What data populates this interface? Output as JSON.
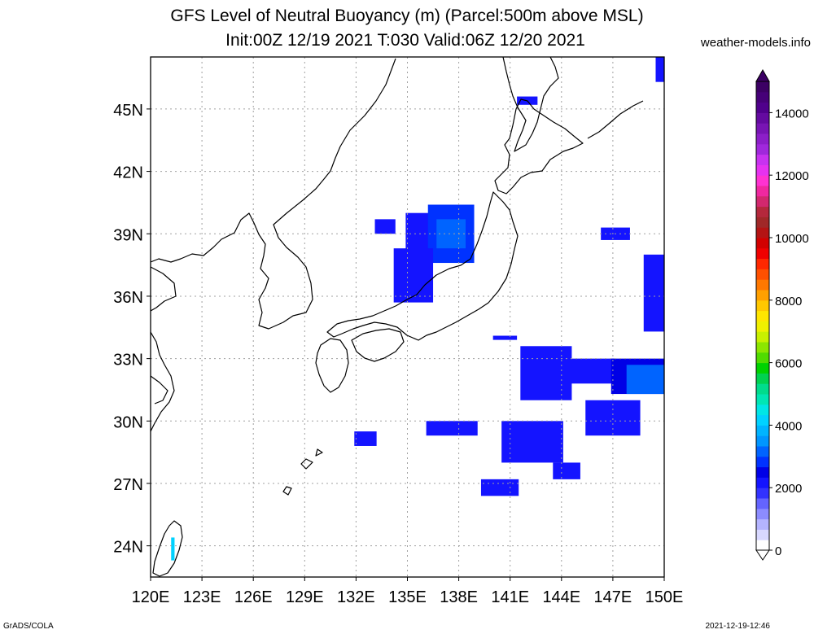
{
  "title": {
    "line1": "GFS Level of Neutral Buoyancy (m) (Parcel:500m above MSL)",
    "line2": "Init:00Z 12/19 2021 T:030 Valid:06Z 12/20 2021"
  },
  "website": "weather-models.info",
  "footer": {
    "left": "GrADS/COLA",
    "right": "2021-12-19-12:46"
  },
  "map": {
    "projection": "lat-lon",
    "lon_range": [
      120,
      150
    ],
    "lat_range": [
      22.5,
      47.5
    ],
    "lon_ticks": [
      {
        "value": 120,
        "label": "120E"
      },
      {
        "value": 123,
        "label": "123E"
      },
      {
        "value": 126,
        "label": "126E"
      },
      {
        "value": 129,
        "label": "129E"
      },
      {
        "value": 132,
        "label": "132E"
      },
      {
        "value": 135,
        "label": "135E"
      },
      {
        "value": 138,
        "label": "138E"
      },
      {
        "value": 141,
        "label": "141E"
      },
      {
        "value": 144,
        "label": "144E"
      },
      {
        "value": 147,
        "label": "147E"
      },
      {
        "value": 150,
        "label": "150E"
      }
    ],
    "lat_ticks": [
      {
        "value": 24,
        "label": "24N"
      },
      {
        "value": 27,
        "label": "27N"
      },
      {
        "value": 30,
        "label": "30N"
      },
      {
        "value": 33,
        "label": "33N"
      },
      {
        "value": 36,
        "label": "36N"
      },
      {
        "value": 39,
        "label": "39N"
      },
      {
        "value": 42,
        "label": "42N"
      },
      {
        "value": 45,
        "label": "45N"
      }
    ],
    "grid": true,
    "colors": {
      "frame": "#000000",
      "grid": "#a0a0a0",
      "coast": "#000000"
    }
  },
  "colorbar": {
    "unit": "m",
    "min": 0,
    "max": 15000,
    "labels": [
      {
        "value": 0,
        "label": "0"
      },
      {
        "value": 2000,
        "label": "2000"
      },
      {
        "value": 4000,
        "label": "4000"
      },
      {
        "value": 6000,
        "label": "6000"
      },
      {
        "value": 8000,
        "label": "8000"
      },
      {
        "value": 10000,
        "label": "10000"
      },
      {
        "value": 12000,
        "label": "12000"
      },
      {
        "value": 14000,
        "label": "14000"
      }
    ],
    "colors": [
      "#ffffff",
      "#d8d8ff",
      "#b4b4ff",
      "#8c8cff",
      "#6464ff",
      "#3232ff",
      "#1414ff",
      "#0000e6",
      "#0032ff",
      "#0064ff",
      "#0096ff",
      "#00b4ff",
      "#00d2ff",
      "#00e6e6",
      "#00e6b4",
      "#00dc8c",
      "#00d250",
      "#00d200",
      "#50dc00",
      "#8ce600",
      "#c8f000",
      "#f0f000",
      "#ffe600",
      "#ffc800",
      "#ffa000",
      "#ff7800",
      "#ff5000",
      "#ff2800",
      "#f00000",
      "#d20000",
      "#b41414",
      "#a02828",
      "#b4283c",
      "#d2286e",
      "#f028a0",
      "#ff32d2",
      "#e632f0",
      "#c832f0",
      "#a028dc",
      "#8c1ec8",
      "#7814b4",
      "#640aa0",
      "#50008c",
      "#460078",
      "#3c0064"
    ]
  },
  "field_data": {
    "name": "Level of Neutral Buoyancy",
    "unit": "m",
    "regions": [
      {
        "lon": [
          134.9,
          136.7
        ],
        "lat": [
          38.1,
          40.0
        ],
        "value": 2000
      },
      {
        "lon": [
          136.2,
          138.9
        ],
        "lat": [
          37.6,
          40.4
        ],
        "value": 2600
      },
      {
        "lon": [
          136.7,
          138.4
        ],
        "lat": [
          38.3,
          39.7
        ],
        "value": 3200
      },
      {
        "lon": [
          133.1,
          134.3
        ],
        "lat": [
          39.0,
          39.7
        ],
        "value": 2000
      },
      {
        "lon": [
          134.2,
          136.5
        ],
        "lat": [
          35.7,
          38.3
        ],
        "value": 2000
      },
      {
        "lon": [
          141.6,
          144.6
        ],
        "lat": [
          31.0,
          33.6
        ],
        "value": 2000
      },
      {
        "lon": [
          143.3,
          147.2
        ],
        "lat": [
          31.8,
          33.0
        ],
        "value": 2200
      },
      {
        "lon": [
          146.9,
          150.0
        ],
        "lat": [
          31.3,
          33.0
        ],
        "value": 2400
      },
      {
        "lon": [
          147.8,
          150.0
        ],
        "lat": [
          31.3,
          32.7
        ],
        "value": 3000
      },
      {
        "lon": [
          145.4,
          148.6
        ],
        "lat": [
          29.3,
          31.0
        ],
        "value": 2000
      },
      {
        "lon": [
          140.5,
          144.1
        ],
        "lat": [
          28.0,
          30.0
        ],
        "value": 2200
      },
      {
        "lon": [
          136.1,
          139.1
        ],
        "lat": [
          29.3,
          30.0
        ],
        "value": 2000
      },
      {
        "lon": [
          139.3,
          141.5
        ],
        "lat": [
          26.4,
          27.2
        ],
        "value": 2000
      },
      {
        "lon": [
          148.8,
          150.0
        ],
        "lat": [
          34.3,
          38.0
        ],
        "value": 2200
      },
      {
        "lon": [
          146.3,
          148.0
        ],
        "lat": [
          38.7,
          39.3
        ],
        "value": 2000
      },
      {
        "lon": [
          140.0,
          141.4
        ],
        "lat": [
          33.9,
          34.1
        ],
        "value": 2000
      },
      {
        "lon": [
          131.9,
          133.2
        ],
        "lat": [
          28.8,
          29.5
        ],
        "value": 2000
      },
      {
        "lon": [
          143.5,
          145.1
        ],
        "lat": [
          27.2,
          28.0
        ],
        "value": 2200
      },
      {
        "lon": [
          141.4,
          142.6
        ],
        "lat": [
          45.2,
          45.6
        ],
        "value": 2000
      },
      {
        "lon": [
          149.5,
          150.0
        ],
        "lat": [
          46.3,
          47.5
        ],
        "value": 2000
      },
      {
        "lon": [
          121.2,
          121.4
        ],
        "lat": [
          23.3,
          24.4
        ],
        "value": 4200
      }
    ]
  }
}
